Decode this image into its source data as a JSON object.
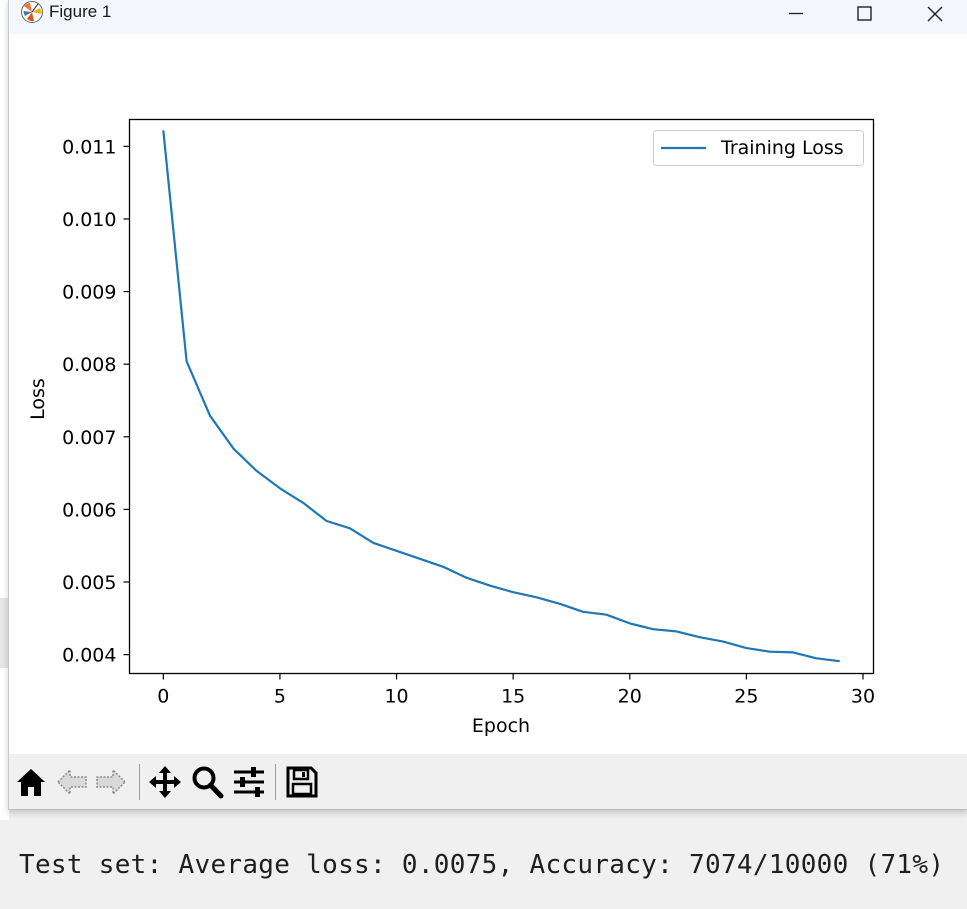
{
  "window": {
    "title": "Figure 1",
    "controls": [
      "minimize-icon",
      "maximize-icon",
      "close-icon"
    ]
  },
  "toolbar": {
    "tools": [
      {
        "name": "home-icon",
        "label": "Home"
      },
      {
        "name": "back-icon",
        "label": "Back"
      },
      {
        "name": "forward-icon",
        "label": "Forward"
      },
      {
        "name": "pan-icon",
        "label": "Pan"
      },
      {
        "name": "zoom-icon",
        "label": "Zoom"
      },
      {
        "name": "configure-subplots-icon",
        "label": "Configure subplots"
      },
      {
        "name": "save-icon",
        "label": "Save"
      }
    ]
  },
  "chart_data": {
    "type": "line",
    "xlabel": "Epoch",
    "ylabel": "Loss",
    "xlim": [
      -1.45,
      30.45
    ],
    "ylim": [
      0.00374,
      0.01137
    ],
    "xticks": [
      0,
      5,
      10,
      15,
      20,
      25,
      30
    ],
    "xtick_labels": [
      "0",
      "5",
      "10",
      "15",
      "20",
      "25",
      "30"
    ],
    "yticks": [
      0.004,
      0.005,
      0.006,
      0.007,
      0.008,
      0.009,
      0.01,
      0.011
    ],
    "ytick_labels": [
      "0.004",
      "0.005",
      "0.006",
      "0.007",
      "0.008",
      "0.009",
      "0.010",
      "0.011"
    ],
    "legend_position": "top-right",
    "series": [
      {
        "name": "Training Loss",
        "color": "#1f77b4",
        "x": [
          0,
          1,
          2,
          3,
          4,
          5,
          6,
          7,
          8,
          9,
          10,
          11,
          12,
          13,
          14,
          15,
          16,
          17,
          18,
          19,
          20,
          21,
          22,
          23,
          24,
          25,
          26,
          27,
          28,
          29
        ],
        "values": [
          0.01122,
          0.00804,
          0.00729,
          0.00684,
          0.00653,
          0.00629,
          0.00609,
          0.00584,
          0.00574,
          0.00554,
          0.00543,
          0.00532,
          0.00521,
          0.00506,
          0.00495,
          0.00486,
          0.00479,
          0.0047,
          0.00459,
          0.00455,
          0.00443,
          0.00435,
          0.00432,
          0.00424,
          0.00418,
          0.00409,
          0.00404,
          0.00403,
          0.00395,
          0.00391
        ]
      }
    ]
  },
  "console": {
    "output": "Test set: Average loss: 0.0075, Accuracy: 7074/10000 (71%)"
  }
}
